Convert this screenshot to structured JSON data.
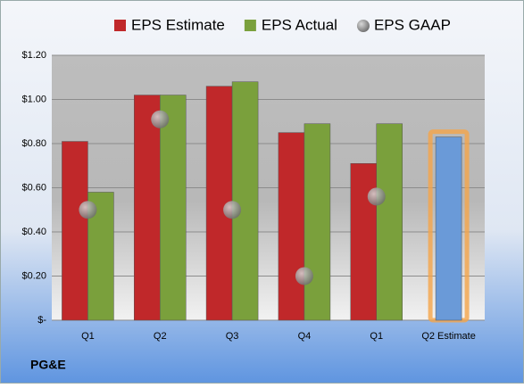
{
  "chart_data": {
    "type": "bar",
    "categories": [
      "Q1",
      "Q2",
      "Q3",
      "Q4",
      "Q1",
      "Q2 Estimate"
    ],
    "series": [
      {
        "name": "EPS Estimate",
        "type": "bar",
        "color": "#c0282a",
        "point_colors": [
          "#c0282a",
          "#c0282a",
          "#c0282a",
          "#c0282a",
          "#c0282a",
          "#6a9ad8"
        ],
        "values": [
          0.81,
          1.02,
          1.06,
          0.85,
          0.71,
          0.83
        ]
      },
      {
        "name": "EPS Actual",
        "type": "bar",
        "color": "#7aa03c",
        "values": [
          0.58,
          1.02,
          1.08,
          0.89,
          0.89,
          null
        ]
      },
      {
        "name": "EPS GAAP",
        "type": "scatter",
        "color": "#8a8a8a",
        "values": [
          0.5,
          0.91,
          0.5,
          0.2,
          0.56,
          null
        ]
      }
    ],
    "ylim": [
      0,
      1.2
    ],
    "yticks": [
      {
        "value": 0,
        "label": "$-"
      },
      {
        "value": 0.2,
        "label": "$0.20"
      },
      {
        "value": 0.4,
        "label": "$0.40"
      },
      {
        "value": 0.6,
        "label": "$0.60"
      },
      {
        "value": 0.8,
        "label": "$0.80"
      },
      {
        "value": 1.0,
        "label": "$1.00"
      },
      {
        "value": 1.2,
        "label": "$1.20"
      }
    ],
    "grid": true,
    "legend": "top",
    "footer": "PG&E"
  }
}
